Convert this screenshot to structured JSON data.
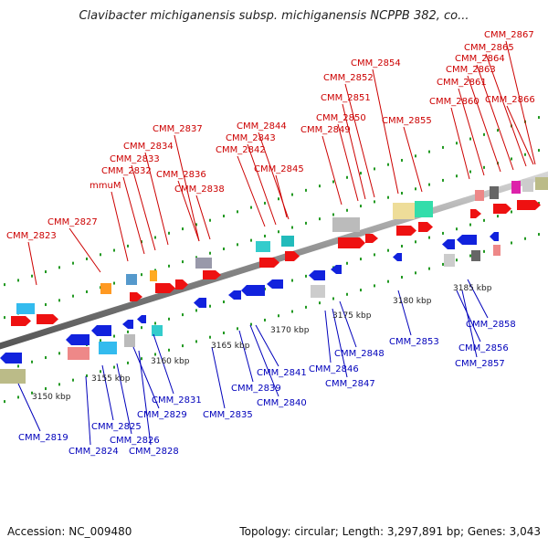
{
  "title": "Clavibacter michiganensis subsp. michiganensis NCPPB 382, co...",
  "footer": {
    "accession": "Accession: NC_009480",
    "summary": "Topology: circular; Length: 3,297,891 bp; Genes: 3,043"
  },
  "colors": {
    "label_top": "#cc0000",
    "label_bottom": "#0000bb",
    "gene_red": "#ee1111",
    "gene_blue": "#1122dd",
    "backbone": "#888888",
    "tick": "#229922"
  },
  "scale_labels": [
    "3150 kbp",
    "3155 kbp",
    "3160 kbp",
    "3165 kbp",
    "3170 kbp",
    "3175 kbp",
    "3180 kbp",
    "3185 kbp"
  ],
  "gene_labels_top": [
    "CMM_2823",
    "CMM_2827",
    "mmuM",
    "CMM_2832",
    "CMM_2833",
    "CMM_2834",
    "CMM_2836",
    "CMM_2837",
    "CMM_2838",
    "CMM_2842",
    "CMM_2843",
    "CMM_2844",
    "CMM_2845",
    "CMM_2849",
    "CMM_2850",
    "CMM_2851",
    "CMM_2852",
    "CMM_2854",
    "CMM_2855",
    "CMM_2860",
    "CMM_2861",
    "CMM_2863",
    "CMM_2864",
    "CMM_2865",
    "CMM_2866",
    "CMM_2867"
  ],
  "gene_labels_bottom": [
    "CMM_2819",
    "CMM_2824",
    "CMM_2825",
    "CMM_2826",
    "CMM_2828",
    "CMM_2829",
    "CMM_2831",
    "CMM_2835",
    "CMM_2839",
    "CMM_2840",
    "CMM_2841",
    "CMM_2846",
    "CMM_2847",
    "CMM_2848",
    "CMM_2853",
    "CMM_2856",
    "CMM_2857",
    "CMM_2858"
  ]
}
